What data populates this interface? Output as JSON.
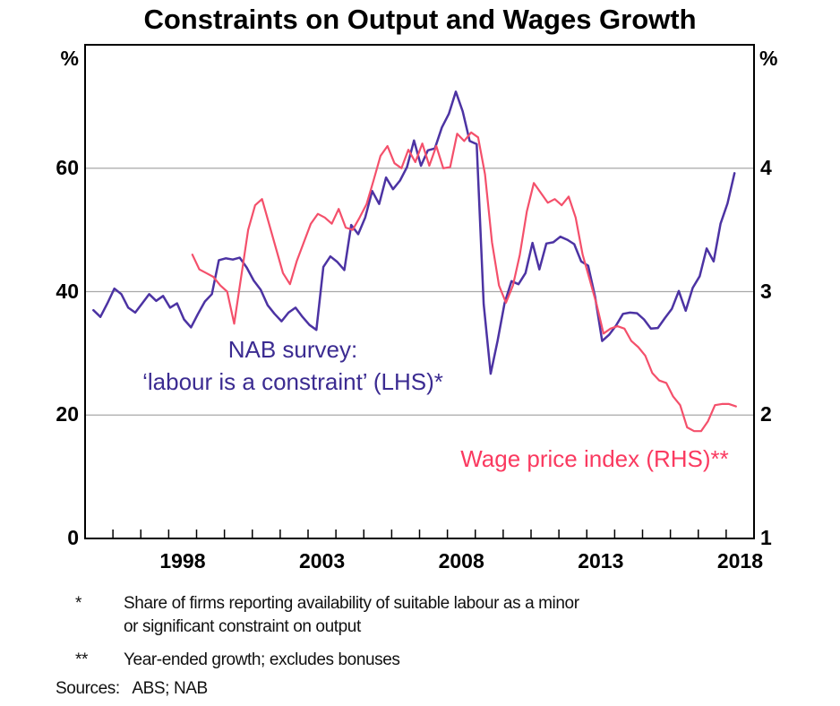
{
  "chart_data": {
    "type": "line",
    "title": "Constraints on Output and Wages Growth",
    "x_axis": {
      "min": 1995,
      "max": 2019,
      "labeled_years": [
        1998,
        2003,
        2008,
        2013,
        2018
      ],
      "minor_tick_every_year": true
    },
    "left_axis": {
      "unit": "%",
      "min": 0,
      "max": 80,
      "labeled_ticks": [
        0,
        20,
        40,
        60
      ]
    },
    "right_axis": {
      "unit": "%",
      "min": 1,
      "max": 5,
      "labeled_ticks": [
        1,
        2,
        3,
        4
      ]
    },
    "gridlines_left_values": [
      20,
      40,
      60
    ],
    "grid_color": "#a8a8a8",
    "axis_color": "#000000",
    "series": [
      {
        "name": "NAB survey: labour is a constraint",
        "axis": "left",
        "color": "#4c33a3",
        "label_color": "#3b2b91",
        "legend_lines": [
          "NAB survey:",
          "‘labour is a constraint’ (LHS)*"
        ],
        "points": [
          [
            1995.3,
            37.0
          ],
          [
            1995.55,
            35.9
          ],
          [
            1995.8,
            38.1
          ],
          [
            1996.05,
            40.5
          ],
          [
            1996.3,
            39.6
          ],
          [
            1996.55,
            37.4
          ],
          [
            1996.8,
            36.6
          ],
          [
            1997.05,
            38.1
          ],
          [
            1997.3,
            39.6
          ],
          [
            1997.55,
            38.5
          ],
          [
            1997.8,
            39.3
          ],
          [
            1998.05,
            37.4
          ],
          [
            1998.3,
            38.1
          ],
          [
            1998.55,
            35.5
          ],
          [
            1998.8,
            34.2
          ],
          [
            1999.05,
            36.4
          ],
          [
            1999.3,
            38.4
          ],
          [
            1999.55,
            39.6
          ],
          [
            1999.8,
            45.1
          ],
          [
            2000.05,
            45.4
          ],
          [
            2000.3,
            45.2
          ],
          [
            2000.55,
            45.5
          ],
          [
            2000.8,
            43.9
          ],
          [
            2001.05,
            41.8
          ],
          [
            2001.3,
            40.3
          ],
          [
            2001.55,
            37.8
          ],
          [
            2001.8,
            36.4
          ],
          [
            2002.05,
            35.2
          ],
          [
            2002.3,
            36.6
          ],
          [
            2002.55,
            37.4
          ],
          [
            2002.8,
            35.9
          ],
          [
            2003.05,
            34.6
          ],
          [
            2003.3,
            33.8
          ],
          [
            2003.55,
            44.0
          ],
          [
            2003.8,
            45.7
          ],
          [
            2004.05,
            44.8
          ],
          [
            2004.3,
            43.5
          ],
          [
            2004.55,
            50.8
          ],
          [
            2004.8,
            49.3
          ],
          [
            2005.05,
            52.0
          ],
          [
            2005.3,
            56.3
          ],
          [
            2005.55,
            54.2
          ],
          [
            2005.8,
            58.5
          ],
          [
            2006.05,
            56.6
          ],
          [
            2006.3,
            58.0
          ],
          [
            2006.55,
            60.2
          ],
          [
            2006.8,
            64.5
          ],
          [
            2007.05,
            60.4
          ],
          [
            2007.3,
            62.9
          ],
          [
            2007.55,
            63.2
          ],
          [
            2007.8,
            66.6
          ],
          [
            2008.05,
            68.8
          ],
          [
            2008.3,
            72.4
          ],
          [
            2008.55,
            69.2
          ],
          [
            2008.8,
            64.4
          ],
          [
            2009.05,
            63.9
          ],
          [
            2009.3,
            38.0
          ],
          [
            2009.55,
            26.7
          ],
          [
            2009.8,
            32.0
          ],
          [
            2010.05,
            38.1
          ],
          [
            2010.3,
            41.7
          ],
          [
            2010.55,
            41.2
          ],
          [
            2010.8,
            43.0
          ],
          [
            2011.05,
            47.9
          ],
          [
            2011.3,
            43.6
          ],
          [
            2011.55,
            47.8
          ],
          [
            2011.8,
            48.0
          ],
          [
            2012.05,
            48.9
          ],
          [
            2012.3,
            48.4
          ],
          [
            2012.55,
            47.7
          ],
          [
            2012.8,
            44.9
          ],
          [
            2013.05,
            44.2
          ],
          [
            2013.3,
            39.1
          ],
          [
            2013.55,
            32.0
          ],
          [
            2013.8,
            33.0
          ],
          [
            2014.05,
            34.5
          ],
          [
            2014.3,
            36.4
          ],
          [
            2014.55,
            36.6
          ],
          [
            2014.8,
            36.5
          ],
          [
            2015.05,
            35.5
          ],
          [
            2015.3,
            34.0
          ],
          [
            2015.55,
            34.1
          ],
          [
            2015.8,
            35.7
          ],
          [
            2016.05,
            37.2
          ],
          [
            2016.3,
            40.1
          ],
          [
            2016.55,
            36.9
          ],
          [
            2016.8,
            40.6
          ],
          [
            2017.05,
            42.5
          ],
          [
            2017.3,
            47.0
          ],
          [
            2017.55,
            44.9
          ],
          [
            2017.8,
            51.0
          ],
          [
            2018.05,
            54.3
          ],
          [
            2018.3,
            59.2
          ]
        ]
      },
      {
        "name": "Wage price index",
        "axis": "right",
        "color": "#f4506b",
        "label_color": "#fa3a60",
        "legend_lines": [
          "Wage price index (RHS)**"
        ],
        "points": [
          [
            1998.85,
            3.3
          ],
          [
            1999.1,
            3.18
          ],
          [
            1999.35,
            3.15
          ],
          [
            1999.6,
            3.12
          ],
          [
            1999.85,
            3.05
          ],
          [
            2000.1,
            3.0
          ],
          [
            2000.35,
            2.74
          ],
          [
            2000.6,
            3.12
          ],
          [
            2000.85,
            3.5
          ],
          [
            2001.1,
            3.7
          ],
          [
            2001.35,
            3.75
          ],
          [
            2001.6,
            3.55
          ],
          [
            2001.85,
            3.35
          ],
          [
            2002.1,
            3.15
          ],
          [
            2002.35,
            3.06
          ],
          [
            2002.6,
            3.25
          ],
          [
            2002.85,
            3.4
          ],
          [
            2003.1,
            3.55
          ],
          [
            2003.35,
            3.63
          ],
          [
            2003.6,
            3.6
          ],
          [
            2003.85,
            3.55
          ],
          [
            2004.1,
            3.67
          ],
          [
            2004.35,
            3.52
          ],
          [
            2004.6,
            3.5
          ],
          [
            2004.85,
            3.6
          ],
          [
            2005.1,
            3.71
          ],
          [
            2005.35,
            3.9
          ],
          [
            2005.6,
            4.1
          ],
          [
            2005.85,
            4.18
          ],
          [
            2006.1,
            4.04
          ],
          [
            2006.35,
            4.0
          ],
          [
            2006.6,
            4.15
          ],
          [
            2006.85,
            4.05
          ],
          [
            2007.1,
            4.2
          ],
          [
            2007.35,
            4.02
          ],
          [
            2007.6,
            4.18
          ],
          [
            2007.85,
            4.0
          ],
          [
            2008.1,
            4.01
          ],
          [
            2008.35,
            4.28
          ],
          [
            2008.6,
            4.22
          ],
          [
            2008.85,
            4.29
          ],
          [
            2009.1,
            4.25
          ],
          [
            2009.35,
            3.95
          ],
          [
            2009.6,
            3.4
          ],
          [
            2009.85,
            3.05
          ],
          [
            2010.1,
            2.91
          ],
          [
            2010.35,
            3.05
          ],
          [
            2010.6,
            3.3
          ],
          [
            2010.85,
            3.65
          ],
          [
            2011.1,
            3.88
          ],
          [
            2011.35,
            3.8
          ],
          [
            2011.6,
            3.72
          ],
          [
            2011.85,
            3.75
          ],
          [
            2012.1,
            3.7
          ],
          [
            2012.35,
            3.77
          ],
          [
            2012.6,
            3.6
          ],
          [
            2012.85,
            3.3
          ],
          [
            2013.1,
            3.1
          ],
          [
            2013.35,
            2.9
          ],
          [
            2013.6,
            2.66
          ],
          [
            2013.85,
            2.7
          ],
          [
            2014.1,
            2.72
          ],
          [
            2014.35,
            2.7
          ],
          [
            2014.6,
            2.6
          ],
          [
            2014.85,
            2.55
          ],
          [
            2015.1,
            2.48
          ],
          [
            2015.35,
            2.34
          ],
          [
            2015.6,
            2.28
          ],
          [
            2015.85,
            2.26
          ],
          [
            2016.1,
            2.15
          ],
          [
            2016.35,
            2.08
          ],
          [
            2016.6,
            1.9
          ],
          [
            2016.85,
            1.87
          ],
          [
            2017.1,
            1.87
          ],
          [
            2017.35,
            1.95
          ],
          [
            2017.6,
            2.08
          ],
          [
            2017.85,
            2.09
          ],
          [
            2018.1,
            2.09
          ],
          [
            2018.35,
            2.07
          ]
        ]
      }
    ],
    "footnotes": [
      {
        "marker": "*",
        "lines": [
          "Share of firms reporting availability of suitable labour as a minor",
          "or significant constraint on output"
        ]
      },
      {
        "marker": "**",
        "lines": [
          "Year-ended growth; excludes bonuses"
        ]
      }
    ],
    "sources": "Sources:   ABS; NAB"
  }
}
